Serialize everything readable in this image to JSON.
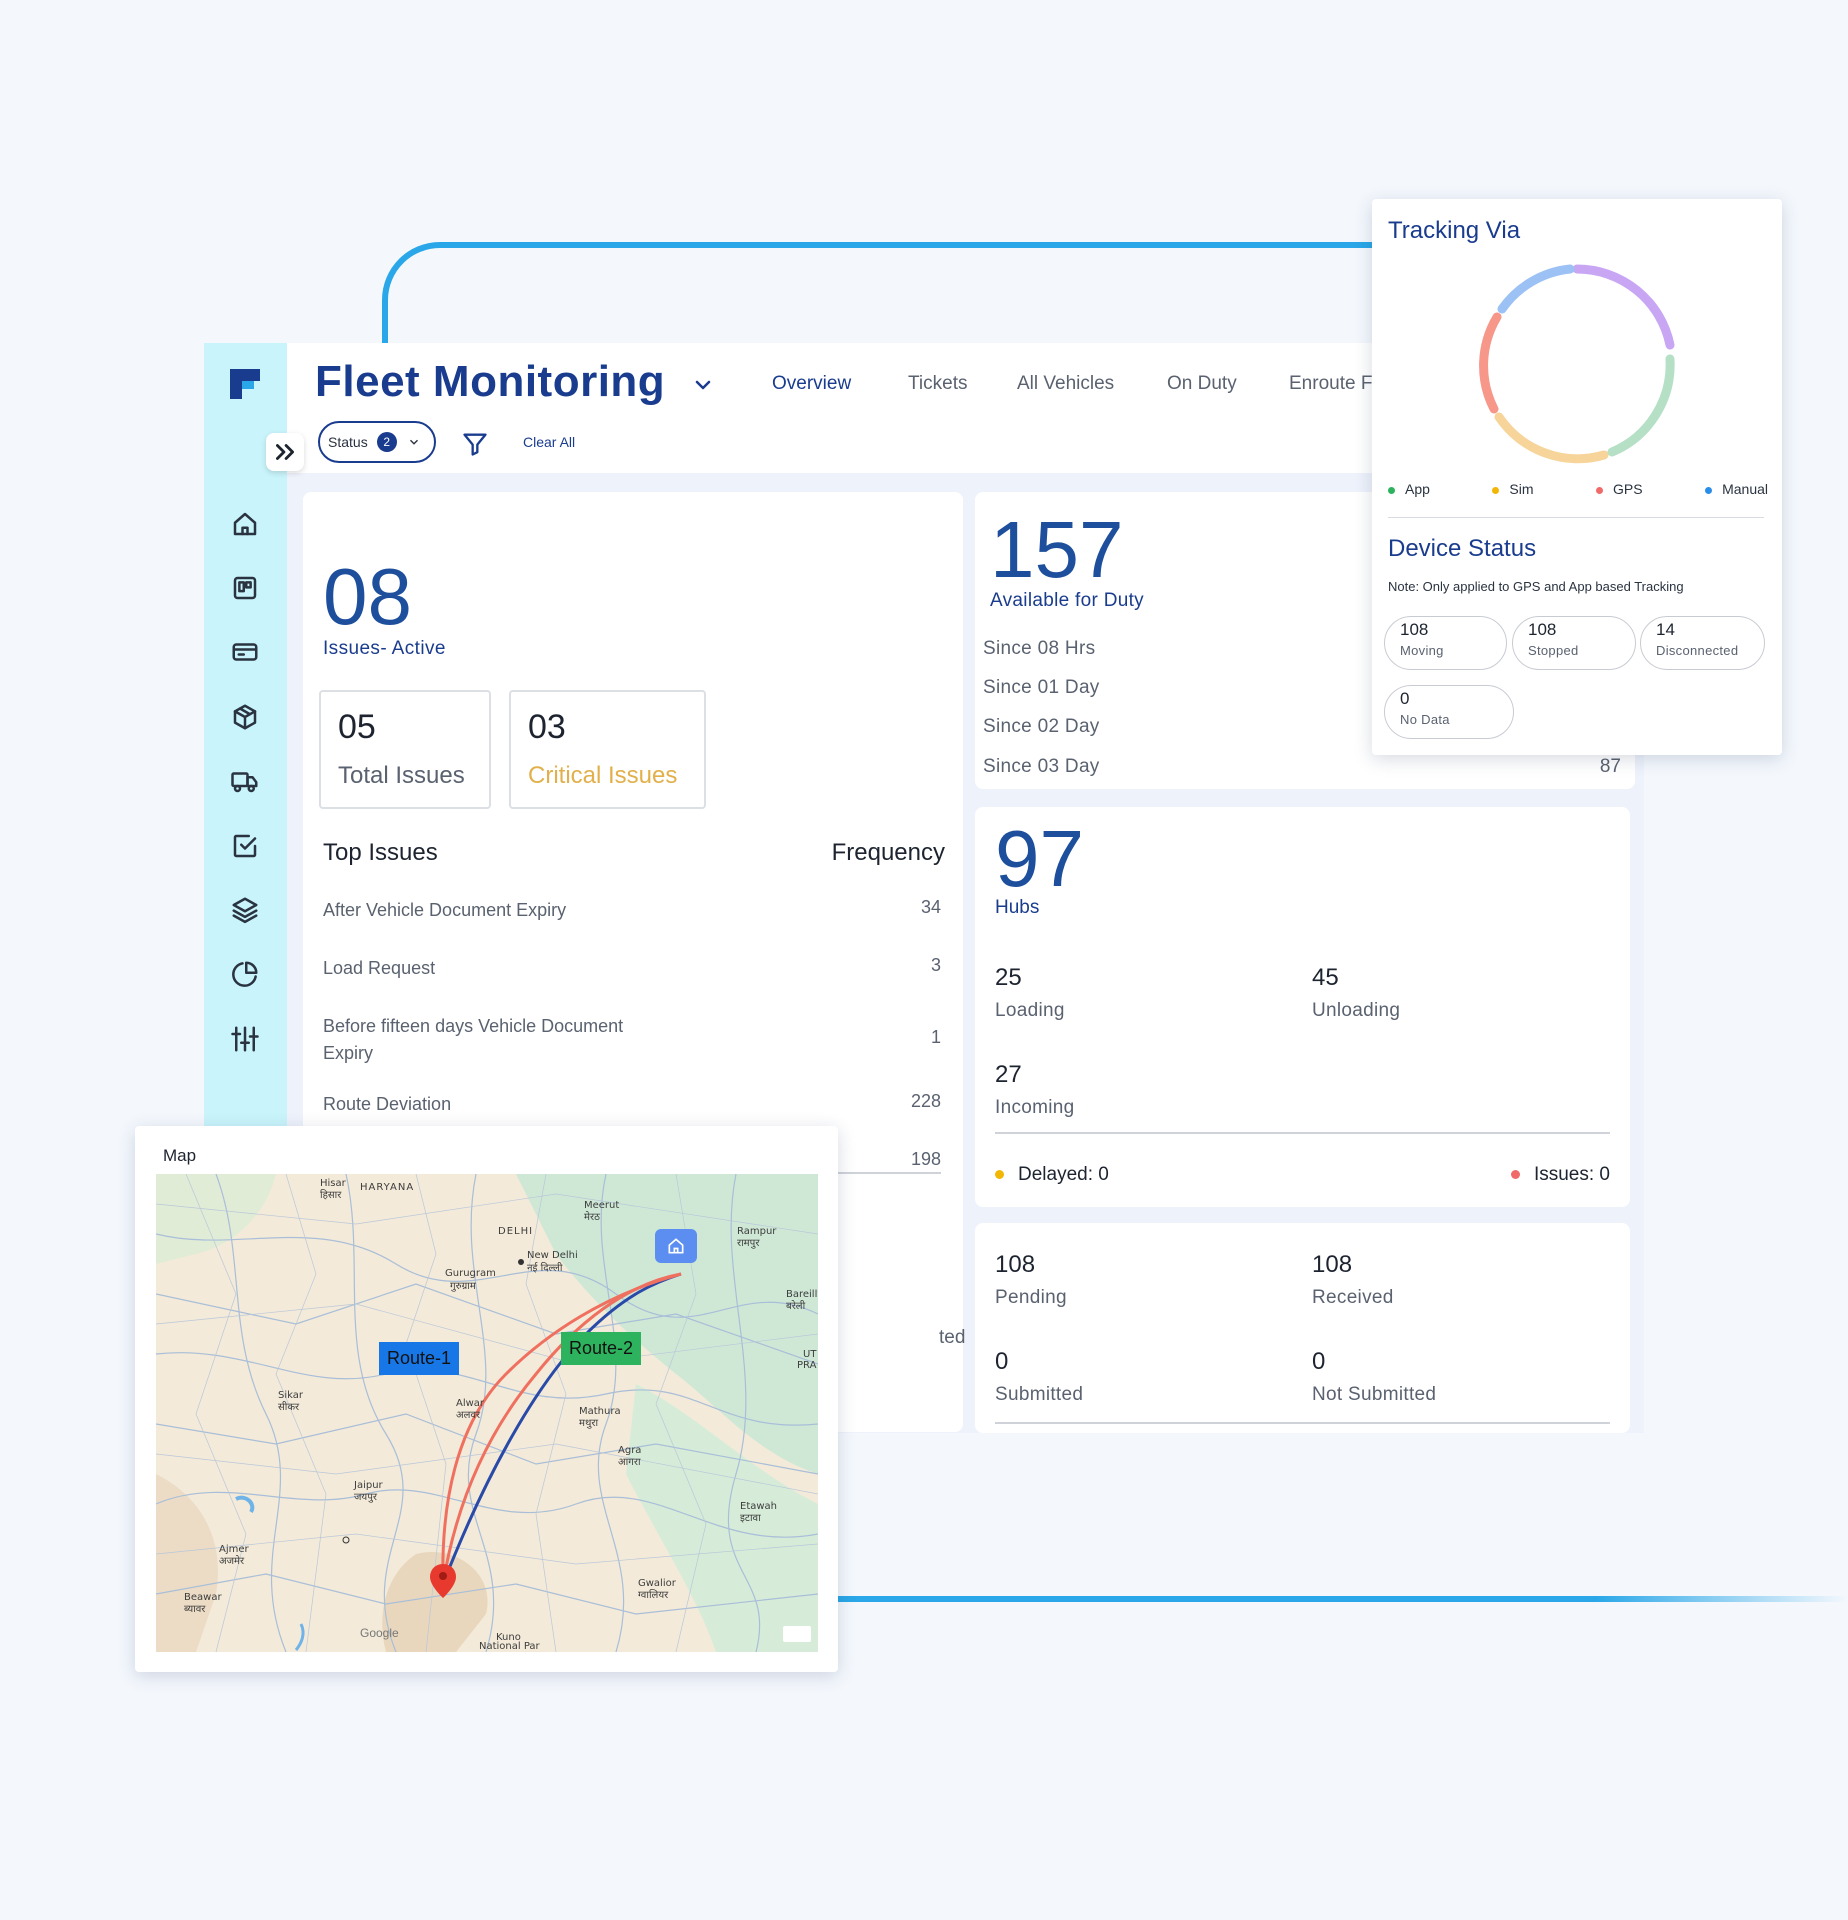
{
  "header": {
    "title": "Fleet Monitoring",
    "tabs": [
      {
        "label": "Overview",
        "active": true
      },
      {
        "label": "Tickets"
      },
      {
        "label": "All Vehicles"
      },
      {
        "label": "On Duty"
      },
      {
        "label": "Enroute F"
      }
    ],
    "status_filter": {
      "label": "Status",
      "count": "2"
    },
    "clear_all": "Clear All"
  },
  "sidebar": {
    "icons": [
      "home-icon",
      "board-icon",
      "card-icon",
      "package-icon",
      "truck-icon",
      "checklist-icon",
      "layers-icon",
      "pie-chart-icon",
      "sliders-icon"
    ]
  },
  "issues": {
    "active_count": "08",
    "active_label": "Issues- Active",
    "total_count": "05",
    "total_label": "Total Issues",
    "critical_count": "03",
    "critical_label": "Critical Issues",
    "top_issues_header": "Top Issues",
    "frequency_header": "Frequency",
    "rows": [
      {
        "name": "After Vehicle Document Expiry",
        "value": "34"
      },
      {
        "name": "Load Request",
        "value": "3"
      },
      {
        "name": "Before fifteen days Vehicle Document Expiry",
        "value": "1"
      },
      {
        "name": "Route Deviation",
        "value": "228"
      },
      {
        "name": "",
        "value": "198"
      }
    ],
    "hidden_text": "ted"
  },
  "duty": {
    "count": "157",
    "label": "Available for Duty",
    "rows": [
      {
        "label": "Since 08 Hrs",
        "value": ""
      },
      {
        "label": "Since 01 Day",
        "value": ""
      },
      {
        "label": "Since 02 Day",
        "value": ""
      },
      {
        "label": "Since 03 Day",
        "value": "87"
      }
    ]
  },
  "hubs": {
    "count": "97",
    "label": "Hubs",
    "loading": {
      "n": "25",
      "label": "Loading"
    },
    "unloading": {
      "n": "45",
      "label": "Unloading"
    },
    "incoming": {
      "n": "27",
      "label": "Incoming"
    },
    "delayed": "Delayed: 0",
    "issues": "Issues: 0",
    "colors": {
      "delayed": "#f2b705",
      "issues": "#f06a6a"
    }
  },
  "docs": {
    "pending": {
      "n": "108",
      "label": "Pending"
    },
    "received": {
      "n": "108",
      "label": "Received"
    },
    "submitted": {
      "n": "0",
      "label": "Submitted"
    },
    "not_submitted": {
      "n": "0",
      "label": "Not Submitted"
    }
  },
  "tracking": {
    "title": "Tracking Via",
    "legend": [
      {
        "label": "App",
        "color": "#2db35d"
      },
      {
        "label": "Sim",
        "color": "#f2b705"
      },
      {
        "label": "GPS",
        "color": "#f06a6a"
      },
      {
        "label": "Manual",
        "color": "#2a8ee8"
      }
    ],
    "device_title": "Device Status",
    "device_note": "Note: Only applied to GPS and App based Tracking",
    "statuses": [
      {
        "n": "108",
        "label": "Moving"
      },
      {
        "n": "108",
        "label": "Stopped"
      },
      {
        "n": "14",
        "label": "Disconnected"
      },
      {
        "n": "0",
        "label": "No Data"
      }
    ]
  },
  "map": {
    "title": "Map",
    "routes": [
      "Route-1",
      "Route-2"
    ],
    "places": [
      {
        "text": "Hisar"
      },
      {
        "text": "हिसार"
      },
      {
        "text": "HARYANA"
      },
      {
        "text": "Meerut"
      },
      {
        "text": "मेरठ"
      },
      {
        "text": "DELHI"
      },
      {
        "text": "New Delhi"
      },
      {
        "text": "नई दिल्ली"
      },
      {
        "text": "Gurugram"
      },
      {
        "text": "गुरुग्राम"
      },
      {
        "text": "Rampur"
      },
      {
        "text": "रामपुर"
      },
      {
        "text": "Bareilly"
      },
      {
        "text": "बरेली"
      },
      {
        "text": "UT"
      },
      {
        "text": "PRA"
      },
      {
        "text": "Sikar"
      },
      {
        "text": "सीकर"
      },
      {
        "text": "Alwar"
      },
      {
        "text": "अलवर"
      },
      {
        "text": "Mathura"
      },
      {
        "text": "मथुरा"
      },
      {
        "text": "Agra"
      },
      {
        "text": "आगरा"
      },
      {
        "text": "Jaipur"
      },
      {
        "text": "जयपुर"
      },
      {
        "text": "Etawah"
      },
      {
        "text": "इटावा"
      },
      {
        "text": "Ajmer"
      },
      {
        "text": "अजमेर"
      },
      {
        "text": "Beawar"
      },
      {
        "text": "ब्यावर"
      },
      {
        "text": "Gwalior"
      },
      {
        "text": "ग्वालियर"
      },
      {
        "text": "Kuno"
      },
      {
        "text": "National Par"
      }
    ],
    "attribution": "Google"
  }
}
